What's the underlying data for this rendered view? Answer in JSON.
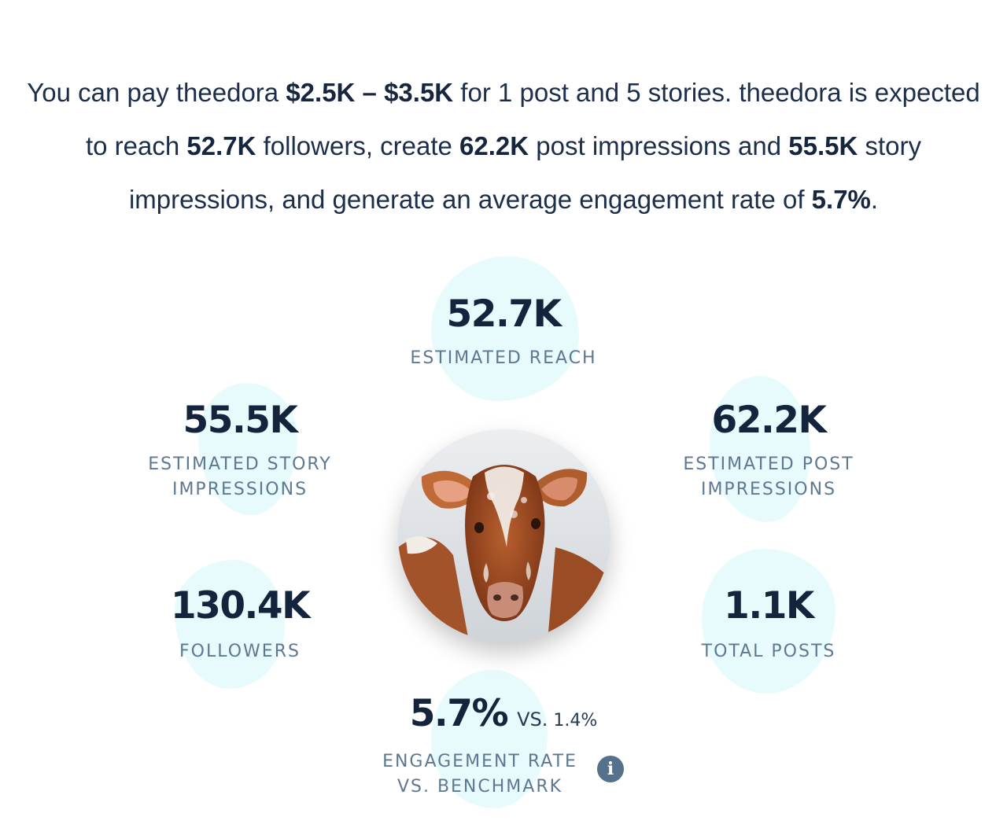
{
  "summary": {
    "t1": "You can pay theedora ",
    "price": "$2.5K – $3.5K",
    "t2": " for 1 post and 5 stories. theedora is expected to reach ",
    "reach": "52.7K",
    "t3": " followers, create ",
    "post_impressions": "62.2K",
    "t4": " post impressions and ",
    "story_impressions": "55.5K",
    "t5": " story impressions, and generate an average engagement rate of ",
    "engagement": "5.7%",
    "t6": "."
  },
  "stats": {
    "reach": {
      "value": "52.7K",
      "label": "ESTIMATED REACH"
    },
    "story_impressions": {
      "value": "55.5K",
      "label_line1": "ESTIMATED STORY",
      "label_line2": "IMPRESSIONS"
    },
    "post_impressions": {
      "value": "62.2K",
      "label_line1": "ESTIMATED POST",
      "label_line2": "IMPRESSIONS"
    },
    "followers": {
      "value": "130.4K",
      "label": "FOLLOWERS"
    },
    "total_posts": {
      "value": "1.1K",
      "label": "TOTAL POSTS"
    },
    "engagement": {
      "value": "5.7%",
      "vs_word": "VS.",
      "benchmark": "1.4%",
      "label_line1": "ENGAGEMENT RATE",
      "label_line2": "VS. BENCHMARK"
    }
  },
  "icons": {
    "info": "info-icon",
    "avatar": "profile-photo-calf"
  },
  "colors": {
    "text_dark": "#14243c",
    "label": "#5d7893",
    "blob": "#e7fbfd",
    "info_icon": "#56718c"
  }
}
